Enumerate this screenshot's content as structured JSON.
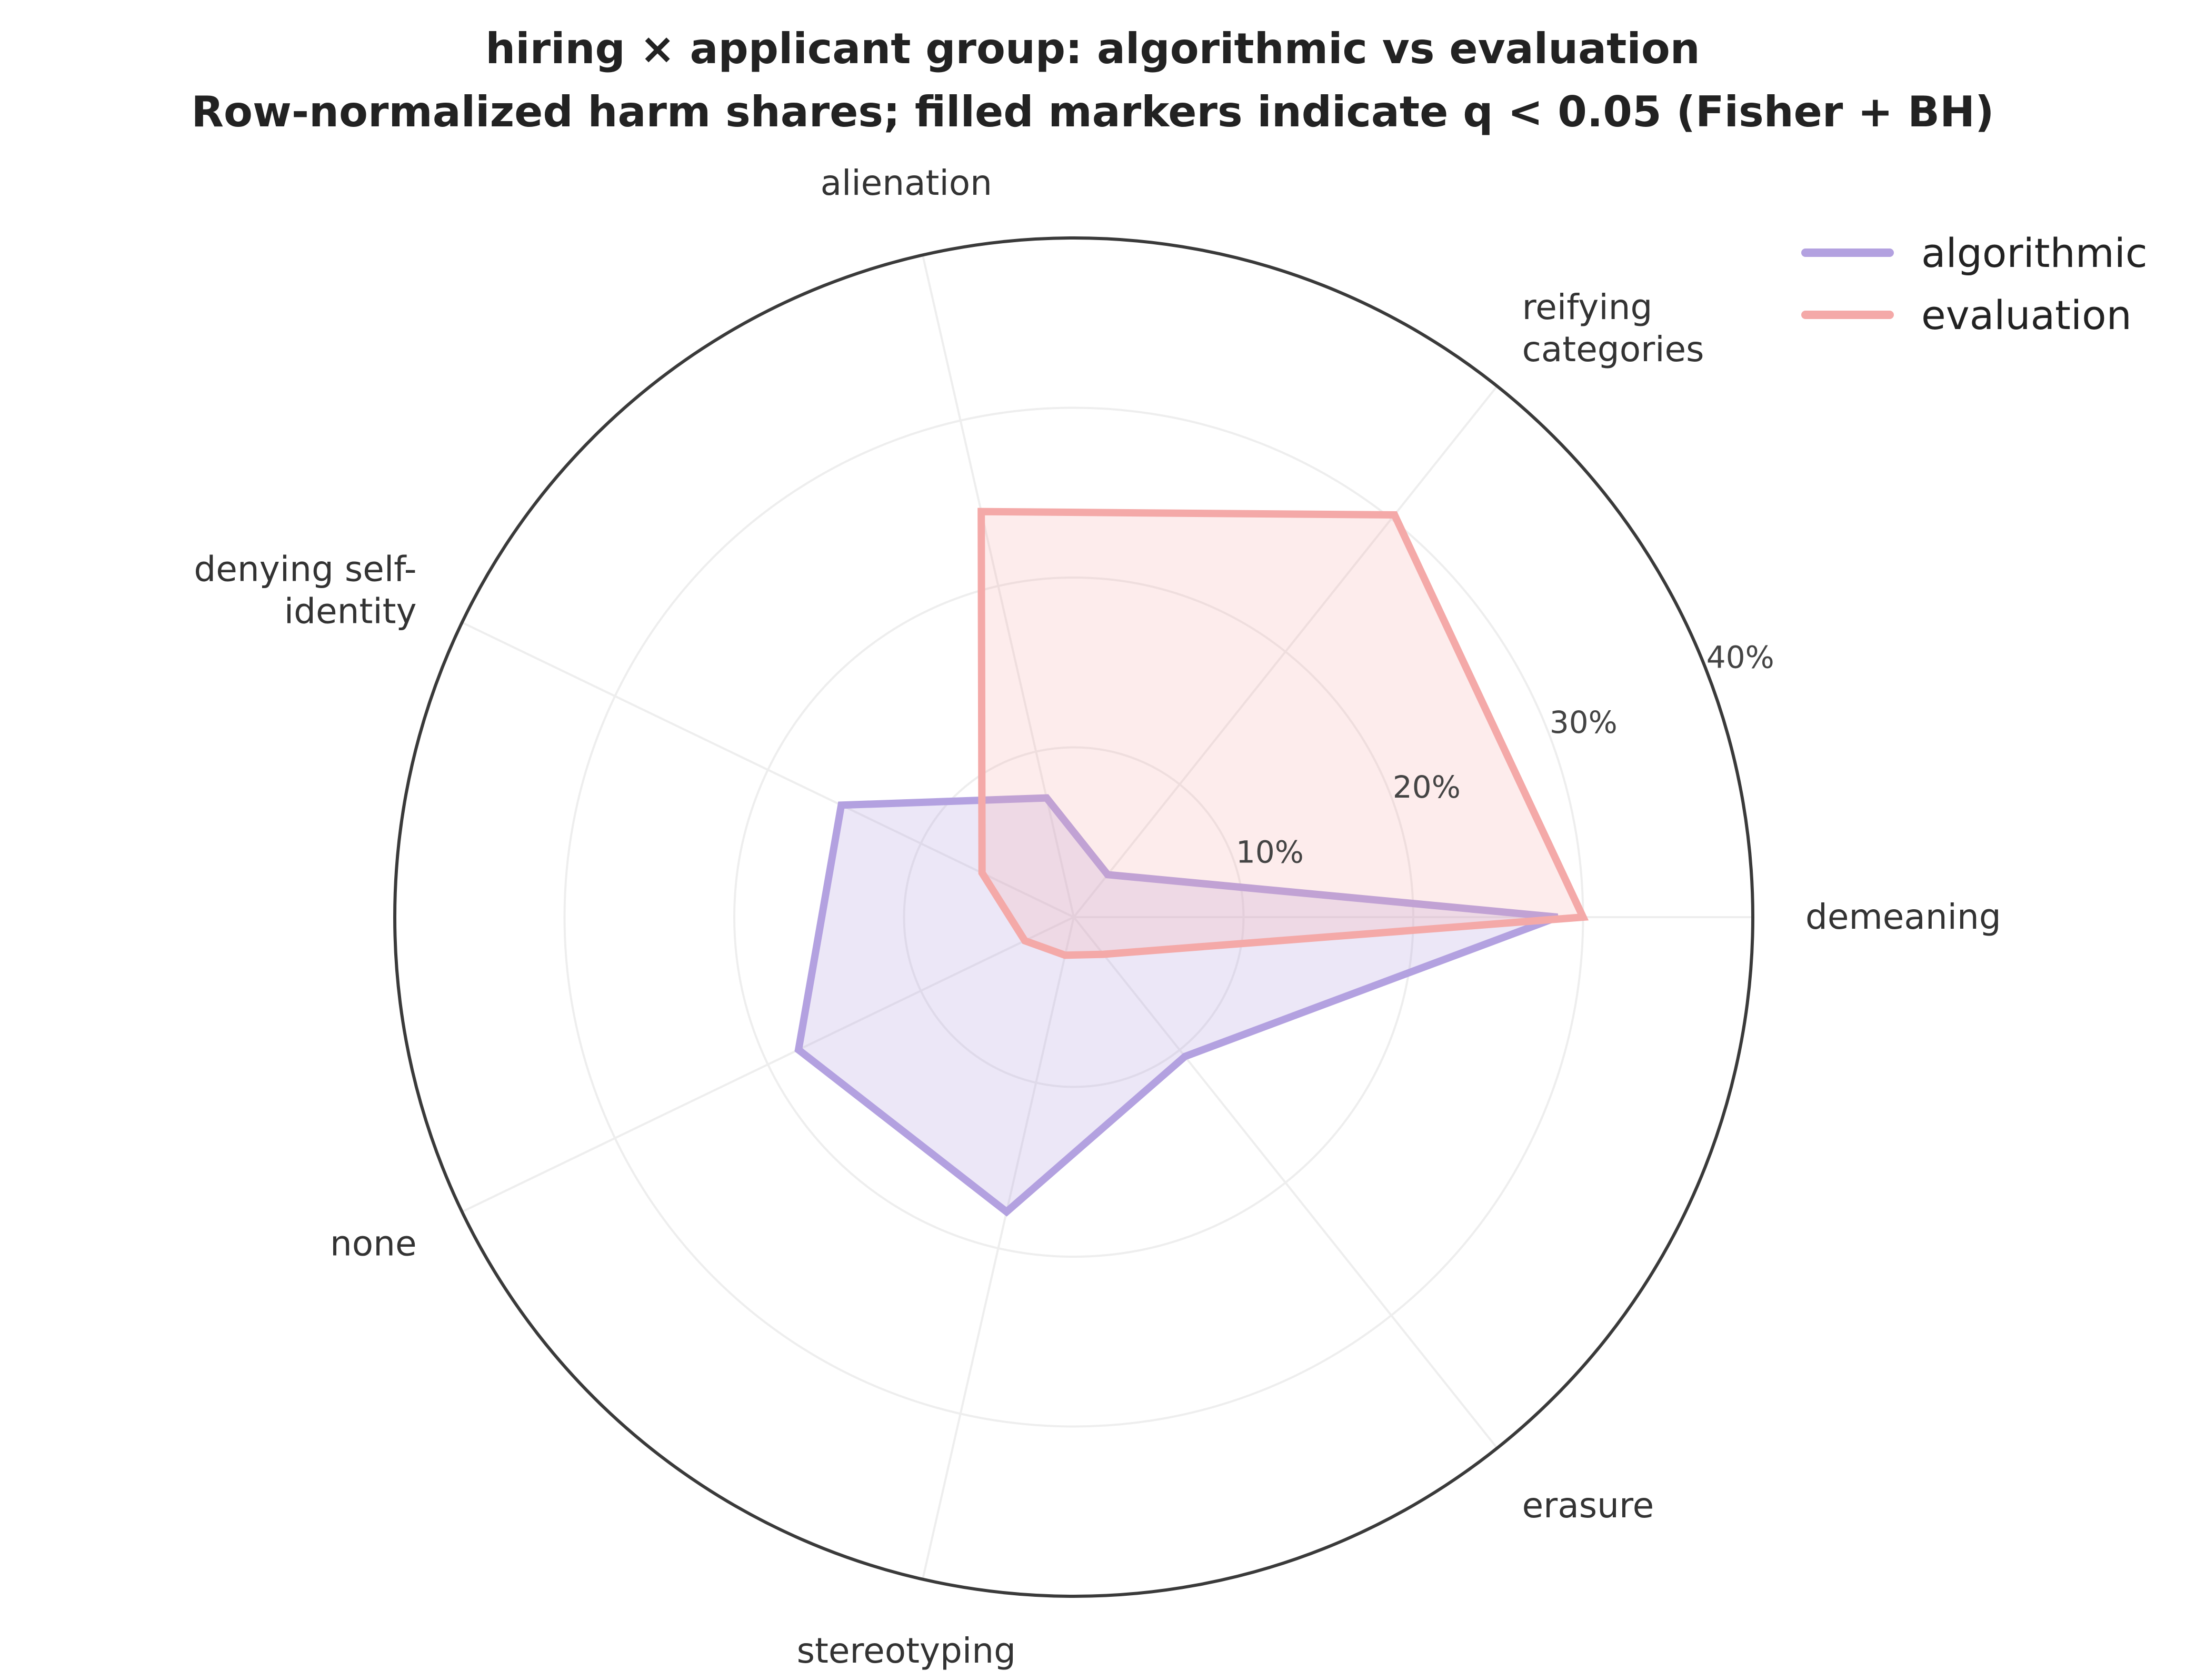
{
  "chart_data": {
    "type": "radar",
    "title": "hiring × applicant group: algorithmic vs evaluation",
    "subtitle": "Row-normalized harm shares; filled markers indicate q < 0.05 (Fisher + BH)",
    "categories": [
      [
        "demeaning"
      ],
      [
        "reifying",
        "categories"
      ],
      [
        "alienation"
      ],
      [
        "denying self-",
        "identity"
      ],
      [
        "none"
      ],
      [
        "stereotyping"
      ],
      [
        "erasure"
      ]
    ],
    "radial_ticks": [
      10,
      20,
      30,
      40
    ],
    "radial_tick_labels": [
      "10%",
      "20%",
      "30%",
      "40%"
    ],
    "rmax": 40,
    "grid": true,
    "legend_position": "top-right",
    "series": [
      {
        "name": "algorithmic",
        "color": "#b3a1e0",
        "fill_opacity": 0.25,
        "values": [
          28.5,
          3.2,
          7.2,
          15.2,
          18.0,
          17.8,
          10.5
        ]
      },
      {
        "name": "evaluation",
        "color": "#f4a9a8",
        "fill_opacity": 0.22,
        "values": [
          30.0,
          30.3,
          24.5,
          6.0,
          3.2,
          2.3,
          2.8
        ]
      }
    ]
  }
}
